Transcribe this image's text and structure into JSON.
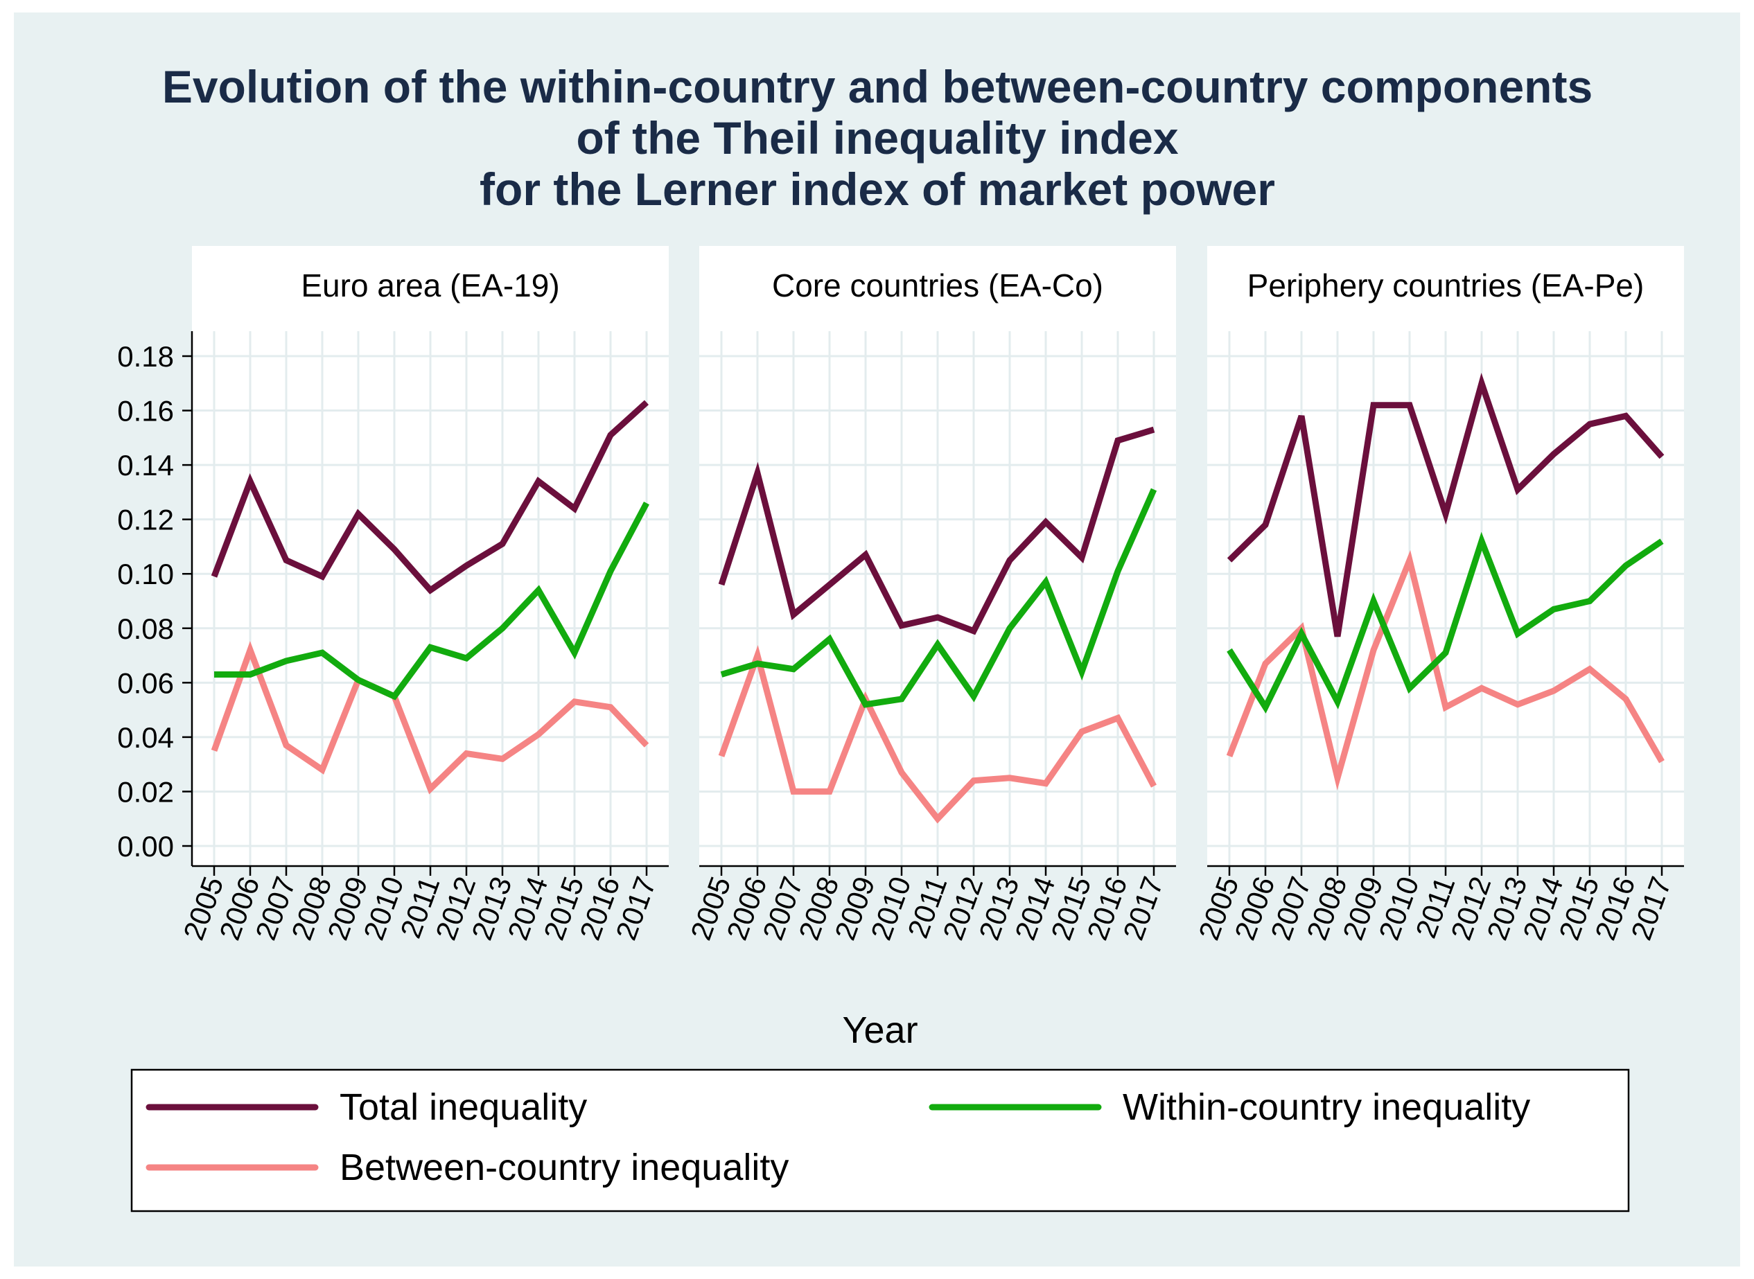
{
  "title_lines": [
    "Evolution of the within-country and between-country components",
    "of the Theil inequality index",
    "for the Lerner index of market power"
  ],
  "colors": {
    "total": "#6b0f3c",
    "within": "#12ab0e",
    "between": "#f58484",
    "title": "#1a2b47",
    "background": "#e8f1f2",
    "grid": "#e3ecee"
  },
  "chart_data": {
    "type": "line",
    "title": "Evolution of the within-country and between-country components of the Theil inequality index for the Lerner index of market power",
    "xlabel": "Year",
    "ylabel": "",
    "ylim": [
      0,
      0.18
    ],
    "yticks": [
      "0.00",
      "0.02",
      "0.04",
      "0.06",
      "0.08",
      "0.10",
      "0.12",
      "0.14",
      "0.16",
      "0.18"
    ],
    "ytick_values": [
      0,
      0.02,
      0.04,
      0.06,
      0.08,
      0.1,
      0.12,
      0.14,
      0.16,
      0.18
    ],
    "x": [
      "2005",
      "2006",
      "2007",
      "2008",
      "2009",
      "2010",
      "2011",
      "2012",
      "2013",
      "2014",
      "2015",
      "2016",
      "2017"
    ],
    "legend": [
      {
        "key": "total",
        "label": "Total inequality"
      },
      {
        "key": "within",
        "label": "Within-country inequality"
      },
      {
        "key": "between",
        "label": "Between-country inequality"
      }
    ],
    "panels": [
      {
        "title": "Euro area (EA-19)",
        "series": [
          {
            "name": "Total inequality",
            "key": "total",
            "values": [
              0.099,
              0.134,
              0.105,
              0.099,
              0.122,
              0.109,
              0.094,
              0.103,
              0.111,
              0.134,
              0.124,
              0.151,
              0.163
            ]
          },
          {
            "name": "Within-country inequality",
            "key": "within",
            "values": [
              0.063,
              0.063,
              0.068,
              0.071,
              0.061,
              0.055,
              0.073,
              0.069,
              0.08,
              0.094,
              0.071,
              0.101,
              0.126
            ]
          },
          {
            "name": "Between-country inequality",
            "key": "between",
            "values": [
              0.035,
              0.072,
              0.037,
              0.028,
              0.061,
              0.055,
              0.021,
              0.034,
              0.032,
              0.041,
              0.053,
              0.051,
              0.037
            ]
          }
        ]
      },
      {
        "title": "Core countries (EA-Co)",
        "series": [
          {
            "name": "Total inequality",
            "key": "total",
            "values": [
              0.096,
              0.137,
              0.085,
              0.096,
              0.107,
              0.081,
              0.084,
              0.079,
              0.105,
              0.119,
              0.106,
              0.149,
              0.153
            ]
          },
          {
            "name": "Within-country inequality",
            "key": "within",
            "values": [
              0.063,
              0.067,
              0.065,
              0.076,
              0.052,
              0.054,
              0.074,
              0.055,
              0.08,
              0.097,
              0.064,
              0.101,
              0.131
            ]
          },
          {
            "name": "Between-country inequality",
            "key": "between",
            "values": [
              0.033,
              0.07,
              0.02,
              0.02,
              0.054,
              0.027,
              0.01,
              0.024,
              0.025,
              0.023,
              0.042,
              0.047,
              0.022
            ]
          }
        ]
      },
      {
        "title": "Periphery countries (EA-Pe)",
        "series": [
          {
            "name": "Total inequality",
            "key": "total",
            "values": [
              0.105,
              0.118,
              0.158,
              0.077,
              0.162,
              0.162,
              0.122,
              0.17,
              0.131,
              0.144,
              0.155,
              0.158,
              0.143
            ]
          },
          {
            "name": "Within-country inequality",
            "key": "within",
            "values": [
              0.072,
              0.051,
              0.078,
              0.053,
              0.09,
              0.058,
              0.071,
              0.112,
              0.078,
              0.087,
              0.09,
              0.103,
              0.112
            ]
          },
          {
            "name": "Between-country inequality",
            "key": "between",
            "values": [
              0.033,
              0.067,
              0.08,
              0.025,
              0.072,
              0.105,
              0.051,
              0.058,
              0.052,
              0.057,
              0.065,
              0.054,
              0.031
            ]
          }
        ]
      }
    ]
  }
}
